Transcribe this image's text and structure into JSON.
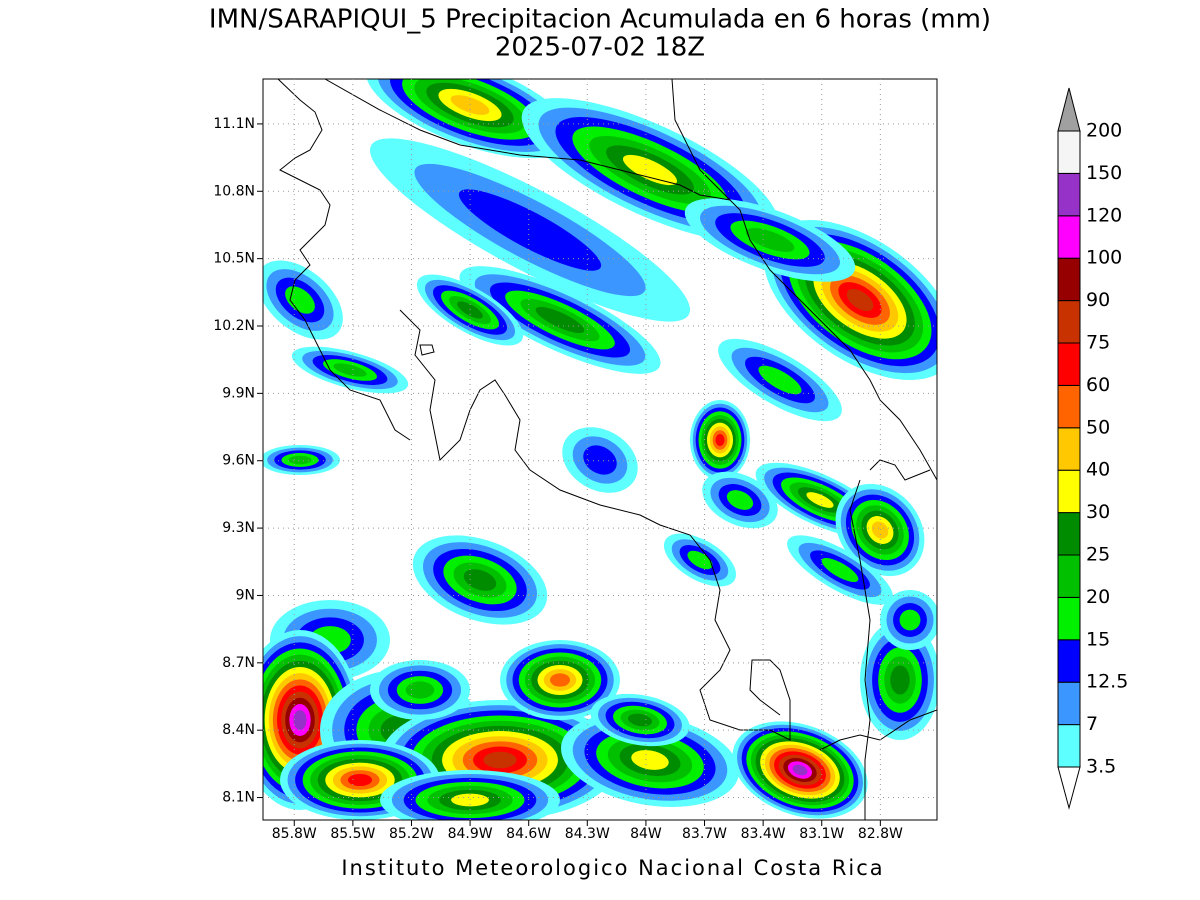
{
  "map": {
    "title": "IMN/SARAPIQUI_5 Precipitacion Acumulada en 6 horas (mm)",
    "subtitle": "2025-07-02 18Z",
    "credit": "Instituto Meteorologico Nacional Costa Rica",
    "xlim": [
      -85.96,
      -82.51
    ],
    "ylim": [
      8.0,
      11.3
    ],
    "xticks": [
      {
        "value": -85.8,
        "label": "85.8W"
      },
      {
        "value": -85.5,
        "label": "85.5W"
      },
      {
        "value": -85.2,
        "label": "85.2W"
      },
      {
        "value": -84.9,
        "label": "84.9W"
      },
      {
        "value": -84.6,
        "label": "84.6W"
      },
      {
        "value": -84.3,
        "label": "84.3W"
      },
      {
        "value": -84.0,
        "label": "84W"
      },
      {
        "value": -83.7,
        "label": "83.7W"
      },
      {
        "value": -83.4,
        "label": "83.4W"
      },
      {
        "value": -83.1,
        "label": "83.1W"
      },
      {
        "value": -82.8,
        "label": "82.8W"
      }
    ],
    "yticks": [
      {
        "value": 8.1,
        "label": "8.1N"
      },
      {
        "value": 8.4,
        "label": "8.4N"
      },
      {
        "value": 8.7,
        "label": "8.7N"
      },
      {
        "value": 9.0,
        "label": "9N"
      },
      {
        "value": 9.3,
        "label": "9.3N"
      },
      {
        "value": 9.6,
        "label": "9.6N"
      },
      {
        "value": 9.9,
        "label": "9.9N"
      },
      {
        "value": 10.2,
        "label": "10.2N"
      },
      {
        "value": 10.5,
        "label": "10.5N"
      },
      {
        "value": 10.8,
        "label": "10.8N"
      },
      {
        "value": 11.1,
        "label": "11.1N"
      }
    ],
    "grid": true,
    "colorbar": {
      "levels": [
        3.5,
        7,
        12.5,
        15,
        20,
        25,
        30,
        40,
        50,
        60,
        75,
        90,
        100,
        120,
        150,
        200
      ],
      "colors": [
        "#5effff",
        "#3c96ff",
        "#0000ff",
        "#00f000",
        "#00c000",
        "#008c00",
        "#ffff00",
        "#ffc800",
        "#ff6400",
        "#ff0000",
        "#c83200",
        "#960000",
        "#ff00ff",
        "#9632c8",
        "#f5f5f5"
      ],
      "under_color": "#ffffff",
      "over_color": "#a0a0a0"
    }
  }
}
